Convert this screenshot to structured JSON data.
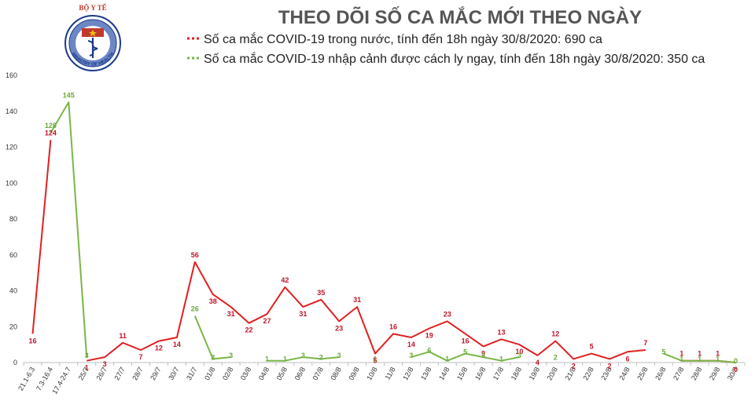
{
  "chart_data": {
    "type": "line",
    "title": "THEO DÕI SỐ CA MẮC MỚI THEO NGÀY",
    "categories": [
      "21.1-6.3",
      "7.3-16.4",
      "17.4-24.7",
      "25/7",
      "26/7",
      "27/7",
      "28/7",
      "29/7",
      "30/7",
      "31/7",
      "01/8",
      "02/8",
      "03/8",
      "04/8",
      "05/8",
      "06/8",
      "07/8",
      "08/8",
      "09/8",
      "10/8",
      "11/8",
      "12/8",
      "13/8",
      "14/8",
      "15/8",
      "16/8",
      "17/8",
      "18/8",
      "19/8",
      "20/8",
      "21/8",
      "22/8",
      "23/8",
      "24/8",
      "25/8",
      "26/8",
      "27/8",
      "28/8",
      "29/8",
      "30/8"
    ],
    "ylim": [
      0,
      160
    ],
    "yticks": [
      0,
      20,
      40,
      60,
      80,
      100,
      120,
      140,
      160
    ],
    "grid": false,
    "legend_position": "top",
    "series": [
      {
        "name": "Số ca mắc COVID-19 trong nước, tính đến 18h ngày 30/8/2020: 690 ca",
        "color": "#e02020",
        "label_color": "#c0152a",
        "values": [
          16,
          124,
          null,
          1,
          3,
          11,
          7,
          12,
          14,
          56,
          38,
          31,
          22,
          27,
          42,
          31,
          35,
          23,
          31,
          5,
          16,
          14,
          19,
          23,
          16,
          9,
          13,
          10,
          4,
          12,
          2,
          5,
          2,
          6,
          7,
          null,
          1,
          1,
          1,
          0
        ]
      },
      {
        "name": "Số ca mắc COVID-19 nhập cảnh được cách ly ngay, tính đến 18h ngày 30/8/2020: 350 ca",
        "color": "#7ab648",
        "label_color": "#6aaa3a",
        "values": [
          null,
          128,
          145,
          3,
          null,
          null,
          null,
          null,
          null,
          26,
          2,
          3,
          null,
          1,
          1,
          3,
          2,
          3,
          null,
          1,
          null,
          3,
          6,
          1,
          5,
          3,
          1,
          3,
          null,
          2,
          null,
          null,
          null,
          null,
          null,
          5,
          1,
          1,
          1,
          0
        ]
      }
    ]
  },
  "logo": {
    "top_text": "BỘ Y TẾ",
    "ring_text": "MINISTRY OF HEALTH",
    "colors": {
      "blue": "#1a3a8a",
      "red": "#c0392b",
      "light": "#6d86c4"
    }
  }
}
